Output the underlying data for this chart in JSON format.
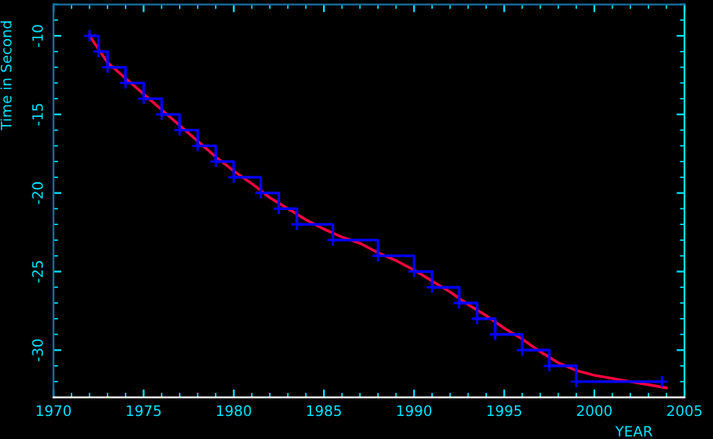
{
  "chart_data": {
    "type": "line",
    "xlabel": "YEAR",
    "ylabel": "Time in Second",
    "xlim": [
      1970,
      2005
    ],
    "ylim": [
      -33,
      -8
    ],
    "xticks": [
      1970,
      1975,
      1980,
      1985,
      1990,
      1995,
      2000,
      2005
    ],
    "yticks": [
      -10,
      -15,
      -20,
      -25,
      -30
    ],
    "grid": false,
    "legend": false,
    "series": [
      {
        "type": "step",
        "color": "#0000ff",
        "marker": "cross",
        "x": [
          1972.0,
          1972.5,
          1973.0,
          1974.0,
          1975.0,
          1976.0,
          1977.0,
          1978.0,
          1979.0,
          1980.0,
          1981.5,
          1982.5,
          1983.5,
          1985.5,
          1988.0,
          1990.0,
          1991.0,
          1992.5,
          1993.5,
          1994.5,
          1996.0,
          1997.5,
          1999.0,
          2003.75
        ],
        "values": [
          -10,
          -11,
          -12,
          -13,
          -14,
          -15,
          -16,
          -17,
          -18,
          -19,
          -20,
          -21,
          -22,
          -23,
          -24,
          -25,
          -26,
          -27,
          -28,
          -29,
          -30,
          -31,
          -32,
          -32
        ]
      },
      {
        "color": "#ff0040",
        "marker": "none",
        "x": [
          1972,
          1973,
          1974,
          1975,
          1976,
          1977,
          1978,
          1979,
          1980,
          1981,
          1982,
          1983,
          1984,
          1985,
          1986,
          1987,
          1988,
          1989,
          1990,
          1991,
          1992,
          1993,
          1994,
          1995,
          1996,
          1997,
          1998,
          1999,
          2000,
          2001,
          2002,
          2003,
          2004
        ],
        "values": [
          -10.0,
          -11.7,
          -12.7,
          -13.7,
          -14.7,
          -15.7,
          -16.7,
          -17.7,
          -18.6,
          -19.4,
          -20.3,
          -21.0,
          -21.7,
          -22.3,
          -22.8,
          -23.2,
          -23.8,
          -24.3,
          -24.9,
          -25.6,
          -26.3,
          -27.1,
          -27.8,
          -28.6,
          -29.3,
          -30.1,
          -30.8,
          -31.3,
          -31.6,
          -31.8,
          -32.0,
          -32.2,
          -32.4
        ]
      }
    ]
  }
}
